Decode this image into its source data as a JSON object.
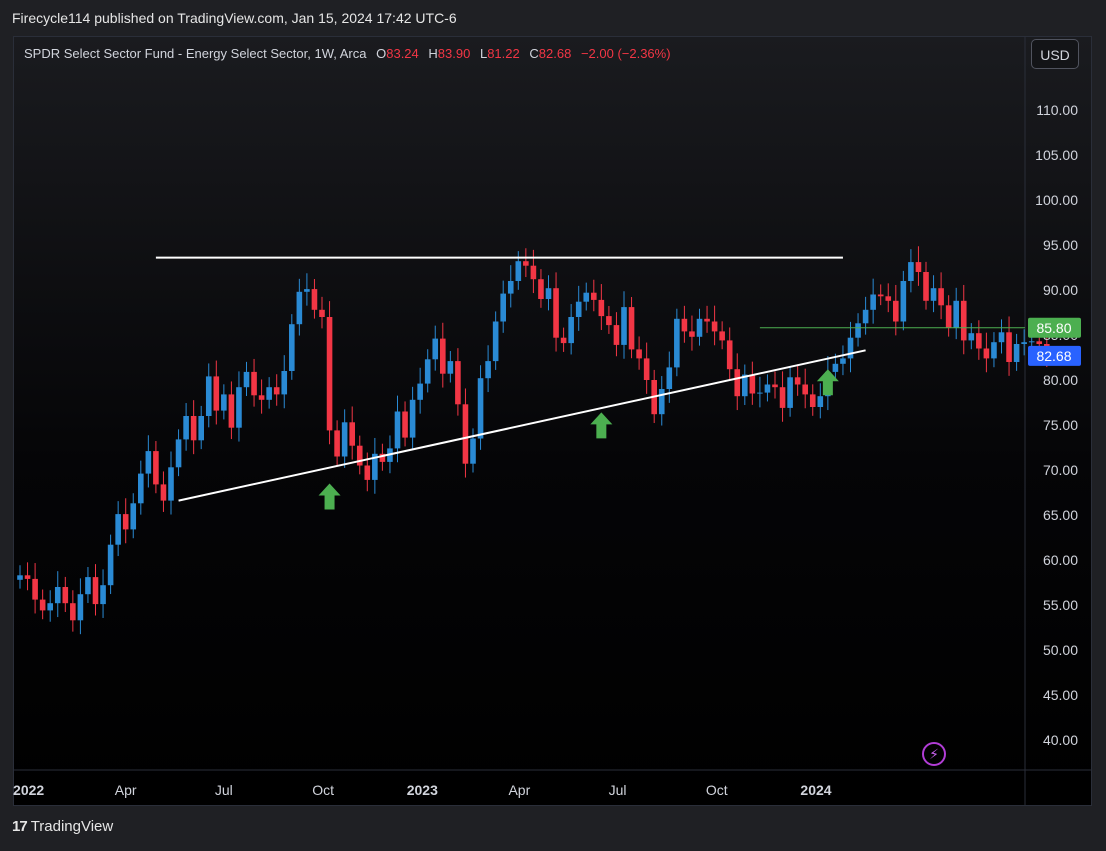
{
  "header": {
    "published": "Firecycle114 published on TradingView.com, Jan 15, 2024 17:42 UTC-6"
  },
  "legend": {
    "symbol": "SPDR Select Sector Fund - Energy Select Sector, 1W, Arca",
    "o_label": "O",
    "o_value": "83.24",
    "h_label": "H",
    "h_value": "83.90",
    "l_label": "L",
    "l_value": "81.22",
    "c_label": "C",
    "c_value": "82.68",
    "change": "−2.00 (−2.36%)"
  },
  "currency": "USD",
  "footer": {
    "brand": "TradingView",
    "logo": "17"
  },
  "colors": {
    "up": "#2a8ad4",
    "down": "#f23645",
    "lines": "#ffffff",
    "arrows": "#4caf50",
    "level": "#4caf50",
    "last": "#2962ff"
  },
  "chart_data": {
    "type": "candlestick",
    "interval": "1W",
    "ylim": [
      37,
      115
    ],
    "y_ticks": [
      "110.00",
      "105.00",
      "100.00",
      "95.00",
      "90.00",
      "85.00",
      "80.00",
      "75.00",
      "70.00",
      "65.00",
      "60.00",
      "55.00",
      "50.00",
      "45.00",
      "40.00"
    ],
    "x_ticks": [
      {
        "label": "2022",
        "date": "2022-01-01",
        "year": true
      },
      {
        "label": "Apr",
        "date": "2022-04-01"
      },
      {
        "label": "Jul",
        "date": "2022-07-01"
      },
      {
        "label": "Oct",
        "date": "2022-10-01"
      },
      {
        "label": "2023",
        "date": "2023-01-01",
        "year": true
      },
      {
        "label": "Apr",
        "date": "2023-04-01"
      },
      {
        "label": "Jul",
        "date": "2023-07-01"
      },
      {
        "label": "Oct",
        "date": "2023-10-01"
      },
      {
        "label": "2024",
        "date": "2024-01-01",
        "year": true
      }
    ],
    "price_labels": [
      {
        "value": 85.8,
        "text": "85.80",
        "color": "#4caf50"
      },
      {
        "value": 82.68,
        "text": "82.68",
        "color": "#2962ff"
      }
    ],
    "closes": [
      58.3,
      57.9,
      55.6,
      54.4,
      55.2,
      57.0,
      55.2,
      53.3,
      56.2,
      58.1,
      55.1,
      57.2,
      61.7,
      65.1,
      63.4,
      66.3,
      69.6,
      72.1,
      68.4,
      66.6,
      70.3,
      73.4,
      76.0,
      73.3,
      76.0,
      80.4,
      76.6,
      78.4,
      74.7,
      79.2,
      80.9,
      78.3,
      77.8,
      79.2,
      78.4,
      81.0,
      86.2,
      89.8,
      90.1,
      87.8,
      87.0,
      74.4,
      71.5,
      75.3,
      72.7,
      70.5,
      68.9,
      71.8,
      70.9,
      72.4,
      76.5,
      73.6,
      77.8,
      79.6,
      82.3,
      84.6,
      80.7,
      82.1,
      77.3,
      70.7,
      73.5,
      80.2,
      82.1,
      86.5,
      89.6,
      91.0,
      93.2,
      92.7,
      91.2,
      89.0,
      90.2,
      84.7,
      84.1,
      87.0,
      88.7,
      89.7,
      88.9,
      87.1,
      86.1,
      83.9,
      88.1,
      83.4,
      82.4,
      80.0,
      76.2,
      79.0,
      81.4,
      86.8,
      85.4,
      84.8,
      86.8,
      86.5,
      85.4,
      84.4,
      81.2,
      78.2,
      80.6,
      78.5,
      78.6,
      79.5,
      79.2,
      76.9,
      80.3,
      79.5,
      78.4,
      77.0,
      78.2,
      80.9,
      81.8,
      82.4,
      84.7,
      86.3,
      87.8,
      89.5,
      89.3,
      88.8,
      86.5,
      91.0,
      93.1,
      92.0,
      88.8,
      90.2,
      88.3,
      85.8,
      88.8,
      84.4,
      85.2,
      83.5,
      82.4,
      84.2,
      85.3,
      82.0,
      84.0,
      84.2,
      84.3,
      84.0,
      82.7
    ],
    "trendlines": [
      {
        "kind": "resistance",
        "from": {
          "date": "2022-04-29",
          "price": 93.6
        },
        "to": {
          "date": "2024-01-26",
          "price": 93.6
        }
      },
      {
        "kind": "support",
        "from": {
          "date": "2022-05-20",
          "price": 66.6
        },
        "to": {
          "date": "2024-02-16",
          "price": 83.3
        }
      }
    ],
    "arrows": [
      {
        "date": "2022-10-07",
        "price": 68.5
      },
      {
        "date": "2023-06-16",
        "price": 76.4
      },
      {
        "date": "2024-01-12",
        "price": 81.2
      }
    ]
  }
}
